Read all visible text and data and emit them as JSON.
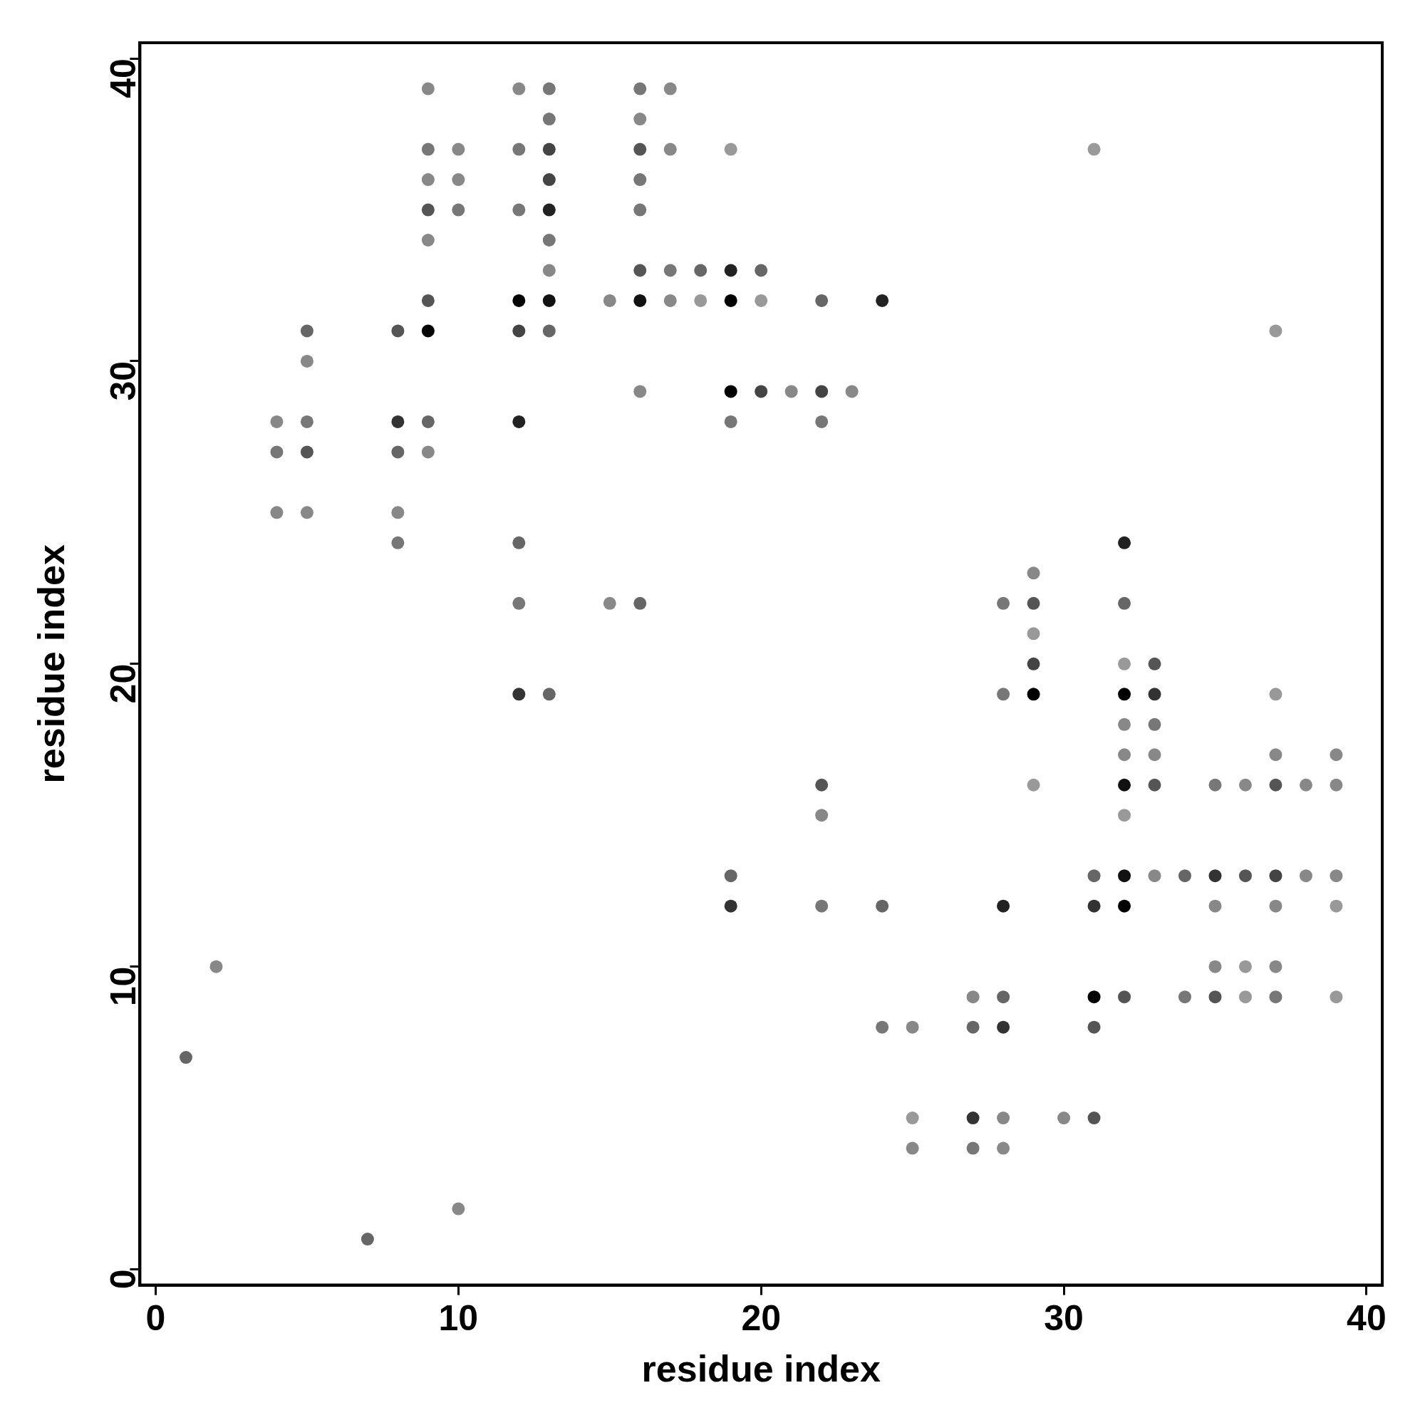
{
  "chart_data": {
    "type": "scatter",
    "xlabel": "residue index",
    "ylabel": "residue index",
    "xlim": [
      -0.52,
      40.52
    ],
    "ylim": [
      -0.52,
      40.52
    ],
    "xticks": [
      0,
      10,
      20,
      30,
      40
    ],
    "yticks": [
      0,
      10,
      20,
      30,
      40
    ],
    "grid": false,
    "legend": false,
    "marker": "circle",
    "x": [
      1,
      2,
      4,
      4,
      4,
      5,
      5,
      5,
      5,
      5,
      7,
      8,
      8,
      8,
      8,
      8,
      9,
      9,
      9,
      9,
      9,
      9,
      9,
      9,
      9,
      10,
      10,
      10,
      10,
      12,
      12,
      12,
      12,
      12,
      12,
      12,
      12,
      12,
      13,
      13,
      13,
      13,
      13,
      13,
      13,
      13,
      13,
      13,
      15,
      15,
      16,
      16,
      16,
      16,
      16,
      16,
      16,
      16,
      16,
      17,
      17,
      17,
      17,
      18,
      18,
      19,
      19,
      19,
      19,
      19,
      19,
      19,
      20,
      20,
      20,
      21,
      22,
      22,
      22,
      22,
      22,
      22,
      23,
      24,
      24,
      24,
      25,
      25,
      25,
      27,
      27,
      27,
      27,
      28,
      28,
      28,
      28,
      28,
      28,
      28,
      29,
      29,
      29,
      29,
      29,
      29,
      30,
      31,
      31,
      31,
      31,
      31,
      31,
      32,
      32,
      32,
      32,
      32,
      32,
      32,
      32,
      32,
      32,
      32,
      33,
      33,
      33,
      33,
      33,
      33,
      34,
      34,
      35,
      35,
      35,
      35,
      35,
      36,
      36,
      36,
      36,
      37,
      37,
      37,
      37,
      37,
      37,
      37,
      37,
      38,
      38,
      39,
      39,
      39,
      39,
      39
    ],
    "values": [
      7,
      10,
      28,
      27,
      25,
      31,
      30,
      28,
      27,
      25,
      1,
      31,
      28,
      27,
      25,
      24,
      39,
      37,
      36,
      35,
      34,
      32,
      31,
      28,
      27,
      37,
      36,
      35,
      2,
      39,
      37,
      35,
      32,
      31,
      28,
      24,
      22,
      19,
      39,
      38,
      37,
      36,
      35,
      34,
      33,
      32,
      31,
      19,
      32,
      22,
      39,
      38,
      37,
      36,
      35,
      33,
      32,
      29,
      22,
      39,
      37,
      33,
      32,
      33,
      32,
      37,
      33,
      32,
      29,
      28,
      13,
      12,
      33,
      32,
      29,
      29,
      32,
      29,
      28,
      16,
      15,
      12,
      29,
      32,
      12,
      8,
      8,
      5,
      4,
      9,
      8,
      5,
      4,
      22,
      19,
      12,
      9,
      8,
      5,
      4,
      23,
      22,
      21,
      20,
      19,
      16,
      5,
      37,
      13,
      12,
      9,
      8,
      5,
      24,
      22,
      20,
      19,
      18,
      17,
      16,
      15,
      13,
      12,
      9,
      20,
      19,
      18,
      17,
      16,
      13,
      13,
      9,
      16,
      13,
      12,
      10,
      9,
      16,
      13,
      10,
      9,
      31,
      19,
      17,
      16,
      13,
      12,
      10,
      9,
      16,
      13,
      17,
      16,
      13,
      12,
      9
    ],
    "colors": [
      "#666666",
      "#888888",
      "#888888",
      "#777777",
      "#888888",
      "#666666",
      "#888888",
      "#777777",
      "#555555",
      "#888888",
      "#666666",
      "#555555",
      "#333333",
      "#666666",
      "#888888",
      "#777777",
      "#888888",
      "#777777",
      "#888888",
      "#555555",
      "#888888",
      "#555555",
      "#000000",
      "#666666",
      "#888888",
      "#888888",
      "#888888",
      "#777777",
      "#888888",
      "#888888",
      "#777777",
      "#777777",
      "#000000",
      "#444444",
      "#222222",
      "#666666",
      "#777777",
      "#333333",
      "#777777",
      "#777777",
      "#444444",
      "#444444",
      "#222222",
      "#777777",
      "#888888",
      "#111111",
      "#666666",
      "#666666",
      "#888888",
      "#888888",
      "#777777",
      "#888888",
      "#555555",
      "#777777",
      "#777777",
      "#555555",
      "#111111",
      "#888888",
      "#666666",
      "#888888",
      "#888888",
      "#777777",
      "#888888",
      "#666666",
      "#999999",
      "#999999",
      "#222222",
      "#000000",
      "#000000",
      "#777777",
      "#666666",
      "#333333",
      "#666666",
      "#999999",
      "#444444",
      "#888888",
      "#666666",
      "#444444",
      "#777777",
      "#555555",
      "#888888",
      "#777777",
      "#888888",
      "#222222",
      "#666666",
      "#777777",
      "#888888",
      "#999999",
      "#888888",
      "#888888",
      "#666666",
      "#333333",
      "#777777",
      "#777777",
      "#777777",
      "#222222",
      "#666666",
      "#333333",
      "#888888",
      "#888888",
      "#888888",
      "#555555",
      "#999999",
      "#444444",
      "#000000",
      "#999999",
      "#888888",
      "#999999",
      "#666666",
      "#333333",
      "#000000",
      "#555555",
      "#555555",
      "#222222",
      "#666666",
      "#999999",
      "#000000",
      "#888888",
      "#888888",
      "#111111",
      "#999999",
      "#111111",
      "#000000",
      "#555555",
      "#555555",
      "#333333",
      "#777777",
      "#888888",
      "#555555",
      "#888888",
      "#666666",
      "#777777",
      "#777777",
      "#333333",
      "#888888",
      "#888888",
      "#555555",
      "#888888",
      "#555555",
      "#999999",
      "#999999",
      "#999999",
      "#999999",
      "#888888",
      "#555555",
      "#444444",
      "#888888",
      "#888888",
      "#777777",
      "#888888",
      "#888888",
      "#888888",
      "#888888",
      "#888888",
      "#999999",
      "#999999"
    ]
  }
}
